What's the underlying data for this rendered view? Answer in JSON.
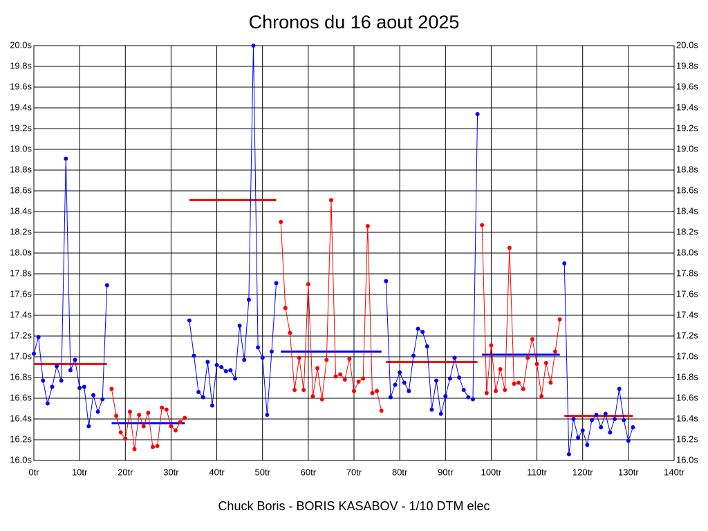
{
  "chart_data": {
    "type": "line",
    "title": "Chronos du 16 aout 2025",
    "x_label": "Chuck Boris - BORIS KASABOV - 1/10 DTM elec",
    "xlim": [
      0,
      140
    ],
    "ylim": [
      16,
      20
    ],
    "grid": true,
    "xticks": [
      {
        "value": 0,
        "label": "0tr"
      },
      {
        "value": 10,
        "label": "10tr"
      },
      {
        "value": 20,
        "label": "20tr"
      },
      {
        "value": 30,
        "label": "30tr"
      },
      {
        "value": 40,
        "label": "40tr"
      },
      {
        "value": 50,
        "label": "50tr"
      },
      {
        "value": 60,
        "label": "60tr"
      },
      {
        "value": 70,
        "label": "70tr"
      },
      {
        "value": 80,
        "label": "80tr"
      },
      {
        "value": 90,
        "label": "90tr"
      },
      {
        "value": 100,
        "label": "100tr"
      },
      {
        "value": 110,
        "label": "110tr"
      },
      {
        "value": 120,
        "label": "120tr"
      },
      {
        "value": 130,
        "label": "130tr"
      },
      {
        "value": 140,
        "label": "140tr"
      }
    ],
    "yticks": [
      {
        "value": 16,
        "label": "16.0s"
      },
      {
        "value": 16.2,
        "label": "16.2s"
      },
      {
        "value": 16.4,
        "label": "16.4s"
      },
      {
        "value": 16.6,
        "label": "16.6s"
      },
      {
        "value": 16.8,
        "label": "16.8s"
      },
      {
        "value": 17,
        "label": "17.0s"
      },
      {
        "value": 17.2,
        "label": "17.2s"
      },
      {
        "value": 17.4,
        "label": "17.4s"
      },
      {
        "value": 17.6,
        "label": "17.6s"
      },
      {
        "value": 17.8,
        "label": "17.8s"
      },
      {
        "value": 18,
        "label": "18.0s"
      },
      {
        "value": 18.2,
        "label": "18.2s"
      },
      {
        "value": 18.4,
        "label": "18.4s"
      },
      {
        "value": 18.6,
        "label": "18.6s"
      },
      {
        "value": 18.8,
        "label": "18.8s"
      },
      {
        "value": 19,
        "label": "19.0s"
      },
      {
        "value": 19.2,
        "label": "19.2s"
      },
      {
        "value": 19.4,
        "label": "19.4s"
      },
      {
        "value": 19.6,
        "label": "19.6s"
      },
      {
        "value": 19.8,
        "label": "19.8s"
      },
      {
        "value": 20,
        "label": "20.0s"
      }
    ],
    "series": [
      {
        "color": "#0000ff",
        "mean_color": "#ff0000",
        "mean": 16.93,
        "x": [
          0,
          1,
          2,
          3,
          4,
          5,
          6,
          7,
          8,
          9,
          10,
          11,
          12,
          13,
          14,
          15,
          16
        ],
        "values": [
          17.03,
          17.19,
          16.77,
          16.55,
          16.71,
          16.91,
          16.77,
          18.91,
          16.87,
          16.97,
          16.7,
          16.71,
          16.33,
          16.63,
          16.47,
          16.59,
          17.69
        ]
      },
      {
        "color": "#ff0000",
        "mean_color": "#0000ff",
        "mean": 16.36,
        "x": [
          17,
          18,
          19,
          20,
          21,
          22,
          23,
          24,
          25,
          26,
          27,
          28,
          29,
          30,
          31,
          32,
          33
        ],
        "values": [
          16.69,
          16.43,
          16.27,
          16.21,
          16.47,
          16.11,
          16.44,
          16.33,
          16.46,
          16.13,
          16.14,
          16.51,
          16.49,
          16.33,
          16.29,
          16.37,
          16.41
        ]
      },
      {
        "color": "#0000ff",
        "mean_color": "#ff0000",
        "mean": 18.51,
        "x": [
          34,
          35,
          36,
          37,
          38,
          39,
          40,
          41,
          42,
          43,
          44,
          45,
          46,
          47,
          48,
          49,
          50,
          51,
          52,
          53
        ],
        "values": [
          17.35,
          17.01,
          16.66,
          16.61,
          16.95,
          16.53,
          16.92,
          16.9,
          16.86,
          16.87,
          16.79,
          17.3,
          16.97,
          17.55,
          20.0,
          17.09,
          16.99,
          16.44,
          17.05,
          17.71
        ]
      },
      {
        "color": "#ff0000",
        "mean_color": "#0000ff",
        "mean": 17.05,
        "x": [
          54,
          55,
          56,
          57,
          58,
          59,
          60,
          61,
          62,
          63,
          64,
          65,
          66,
          67,
          68,
          69,
          70,
          71,
          72,
          73,
          74,
          75,
          76
        ],
        "values": [
          18.3,
          17.47,
          17.23,
          16.68,
          16.99,
          16.68,
          17.7,
          16.62,
          16.89,
          16.59,
          16.97,
          18.51,
          16.81,
          16.83,
          16.78,
          16.98,
          16.67,
          16.76,
          16.79,
          18.26,
          16.65,
          16.67,
          16.48
        ]
      },
      {
        "color": "#0000ff",
        "mean_color": "#ff0000",
        "mean": 16.95,
        "x": [
          77,
          78,
          79,
          80,
          81,
          82,
          83,
          84,
          85,
          86,
          87,
          88,
          89,
          90,
          91,
          92,
          93,
          94,
          95,
          96,
          97
        ],
        "values": [
          17.73,
          16.61,
          16.73,
          16.85,
          16.75,
          16.67,
          17.01,
          17.27,
          17.24,
          17.1,
          16.49,
          16.77,
          16.45,
          16.62,
          16.79,
          16.99,
          16.8,
          16.68,
          16.61,
          16.59,
          19.34
        ]
      },
      {
        "color": "#ff0000",
        "mean_color": "#0000ff",
        "mean": 17.02,
        "x": [
          98,
          99,
          100,
          101,
          102,
          103,
          104,
          105,
          106,
          107,
          108,
          109,
          110,
          111,
          112,
          113,
          114,
          115
        ],
        "values": [
          18.27,
          16.65,
          17.11,
          16.67,
          16.88,
          16.68,
          18.05,
          16.74,
          16.75,
          16.69,
          16.99,
          17.17,
          16.93,
          16.62,
          16.94,
          16.75,
          17.05,
          17.36
        ]
      },
      {
        "color": "#0000ff",
        "mean_color": "#ff0000",
        "mean": 16.43,
        "x": [
          116,
          117,
          118,
          119,
          120,
          121,
          122,
          123,
          124,
          125,
          126,
          127,
          128,
          129,
          130,
          131
        ],
        "values": [
          17.9,
          16.06,
          16.4,
          16.22,
          16.29,
          16.15,
          16.39,
          16.44,
          16.32,
          16.45,
          16.27,
          16.4,
          16.69,
          16.39,
          16.19,
          16.32
        ]
      }
    ]
  }
}
